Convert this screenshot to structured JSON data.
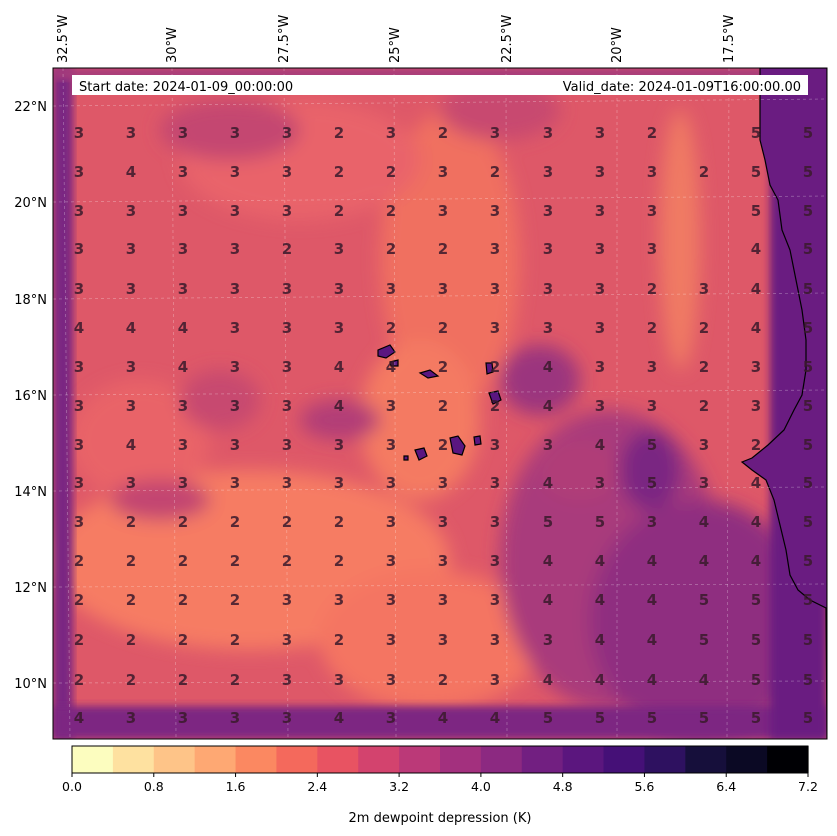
{
  "map": {
    "lon_labels": [
      "32.5°W",
      "30°W",
      "27.5°W",
      "25°W",
      "22.5°W",
      "20°W",
      "17.5°W"
    ],
    "lat_labels": [
      "22°N",
      "20°N",
      "18°N",
      "16°N",
      "14°N",
      "12°N",
      "10°N"
    ],
    "start_date": "Start date: 2024-01-09_00:00:00",
    "valid_date": "Valid_date: 2024-01-09T16:00:00.00",
    "grid_values": [
      [
        "3",
        "3",
        "3",
        "3",
        "3",
        "2",
        "3",
        "2",
        "3",
        "3",
        "3",
        "2",
        "5",
        "5"
      ],
      [
        "3",
        "4",
        "3",
        "3",
        "3",
        "2",
        "2",
        "3",
        "2",
        "3",
        "3",
        "3",
        "2",
        "5",
        "5"
      ],
      [
        "3",
        "3",
        "3",
        "3",
        "3",
        "2",
        "2",
        "3",
        "3",
        "3",
        "3",
        "3",
        "5",
        "5"
      ],
      [
        "3",
        "3",
        "3",
        "3",
        "2",
        "3",
        "2",
        "2",
        "3",
        "3",
        "3",
        "3",
        "4",
        "5"
      ],
      [
        "3",
        "3",
        "3",
        "3",
        "3",
        "3",
        "3",
        "3",
        "3",
        "3",
        "3",
        "2",
        "3",
        "4",
        "5"
      ],
      [
        "4",
        "4",
        "4",
        "3",
        "3",
        "3",
        "2",
        "2",
        "3",
        "3",
        "3",
        "2",
        "2",
        "4",
        "5"
      ],
      [
        "3",
        "3",
        "4",
        "3",
        "3",
        "4",
        "4",
        "2",
        "2",
        "4",
        "3",
        "3",
        "2",
        "3",
        "5"
      ],
      [
        "3",
        "3",
        "3",
        "3",
        "3",
        "4",
        "3",
        "2",
        "2",
        "4",
        "3",
        "3",
        "2",
        "3",
        "5"
      ],
      [
        "3",
        "4",
        "3",
        "3",
        "3",
        "3",
        "3",
        "2",
        "3",
        "3",
        "4",
        "5",
        "3",
        "2",
        "5"
      ],
      [
        "3",
        "3",
        "3",
        "3",
        "3",
        "3",
        "3",
        "3",
        "3",
        "4",
        "3",
        "5",
        "3",
        "4",
        "5"
      ],
      [
        "3",
        "2",
        "2",
        "2",
        "2",
        "2",
        "3",
        "3",
        "3",
        "5",
        "5",
        "3",
        "4",
        "4",
        "5"
      ],
      [
        "2",
        "2",
        "2",
        "2",
        "2",
        "2",
        "3",
        "3",
        "3",
        "4",
        "4",
        "4",
        "4",
        "4",
        "5"
      ],
      [
        "2",
        "2",
        "2",
        "2",
        "3",
        "3",
        "3",
        "3",
        "3",
        "4",
        "4",
        "4",
        "5",
        "5",
        "5"
      ],
      [
        "2",
        "2",
        "2",
        "2",
        "3",
        "2",
        "3",
        "3",
        "3",
        "3",
        "4",
        "4",
        "5",
        "5",
        "5"
      ],
      [
        "2",
        "2",
        "2",
        "2",
        "3",
        "3",
        "3",
        "2",
        "3",
        "4",
        "4",
        "4",
        "4",
        "5",
        "5"
      ],
      [
        "4",
        "3",
        "3",
        "3",
        "3",
        "4",
        "3",
        "4",
        "4",
        "5",
        "5",
        "5",
        "5",
        "5",
        "5"
      ]
    ]
  },
  "colorbar": {
    "label": "2m dewpoint depression (K)",
    "ticks": [
      "0.0",
      "0.8",
      "1.6",
      "2.4",
      "3.2",
      "4.0",
      "4.8",
      "5.6",
      "6.4",
      "7.2"
    ],
    "colors": [
      "#fcfdbf",
      "#fee1a0",
      "#fec488",
      "#fea873",
      "#fb8861",
      "#f4695c",
      "#e85362",
      "#d3436e",
      "#bb3978",
      "#a3307e",
      "#8c2981",
      "#721f81",
      "#5b167e",
      "#451077",
      "#2e1160",
      "#160f3b",
      "#0b0924",
      "#000004"
    ]
  }
}
